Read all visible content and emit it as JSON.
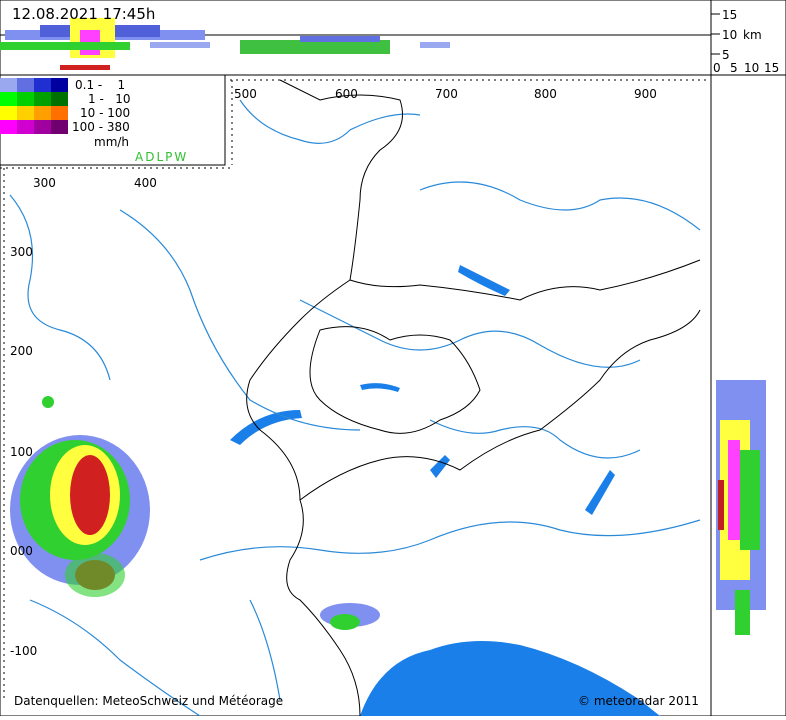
{
  "header": {
    "timestamp": "12.08.2021 17:45h"
  },
  "profile_scale": {
    "heights": [
      "15",
      "10",
      "5"
    ],
    "unit": "km",
    "widths": [
      "0",
      "5",
      "10",
      "15"
    ]
  },
  "legend": {
    "ranges": [
      "0.1 -    1",
      "1 -   10",
      "10 - 100",
      "100 - 380"
    ],
    "unit": "mm/h",
    "stations": "ADLPW"
  },
  "axes": {
    "top_x": [
      "500",
      "600",
      "700",
      "800",
      "900"
    ],
    "inner_x": [
      "300",
      "400"
    ],
    "left_y": [
      "300",
      "200",
      "100",
      "000",
      "-100"
    ]
  },
  "footer": {
    "source": "Datenquellen: MeteoSchweiz und Météorage",
    "copyright": "© meteoradar 2011"
  }
}
